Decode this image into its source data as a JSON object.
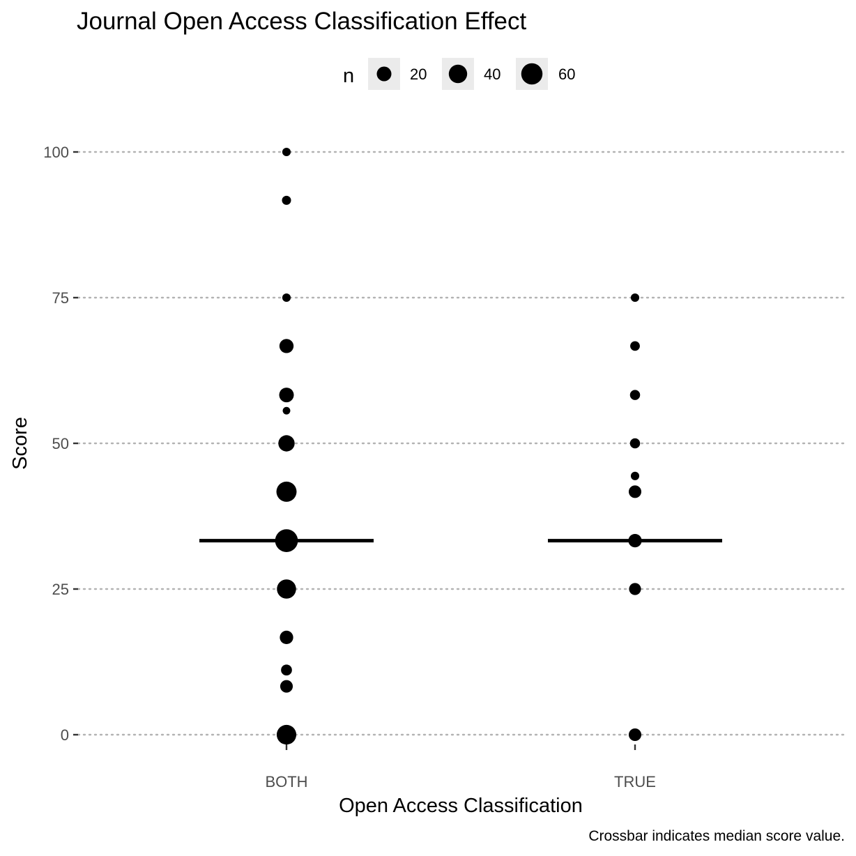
{
  "chart_data": {
    "type": "scatter",
    "title": "Journal Open Access Classification Effect",
    "xlabel": "Open Access Classification",
    "ylabel": "Score",
    "caption": "Crossbar indicates median score value.",
    "categories": [
      "BOTH",
      "TRUE"
    ],
    "ylim": [
      0,
      100
    ],
    "yticks": [
      "0",
      "25",
      "50",
      "75",
      "100"
    ],
    "yticks_values": [
      0,
      25,
      50,
      75,
      100
    ],
    "grid": "horizontal dotted major gridlines",
    "legend": {
      "title": "n",
      "placement": "top",
      "labels": [
        "20",
        "40",
        "60"
      ],
      "values": [
        20,
        40,
        60
      ]
    },
    "medians": [
      {
        "category": "BOTH",
        "y": 33.3
      },
      {
        "category": "TRUE",
        "y": 33.3
      }
    ],
    "points": [
      {
        "category": "BOTH",
        "y": 100,
        "n": 2
      },
      {
        "category": "BOTH",
        "y": 91.7,
        "n": 3
      },
      {
        "category": "BOTH",
        "y": 75,
        "n": 2
      },
      {
        "category": "BOTH",
        "y": 66.7,
        "n": 18
      },
      {
        "category": "BOTH",
        "y": 58.3,
        "n": 20
      },
      {
        "category": "BOTH",
        "y": 55.6,
        "n": 1
      },
      {
        "category": "BOTH",
        "y": 50,
        "n": 28
      },
      {
        "category": "BOTH",
        "y": 41.7,
        "n": 52
      },
      {
        "category": "BOTH",
        "y": 33.3,
        "n": 72
      },
      {
        "category": "BOTH",
        "y": 25,
        "n": 45
      },
      {
        "category": "BOTH",
        "y": 16.7,
        "n": 15
      },
      {
        "category": "BOTH",
        "y": 11.1,
        "n": 7
      },
      {
        "category": "BOTH",
        "y": 8.3,
        "n": 12
      },
      {
        "category": "BOTH",
        "y": 0,
        "n": 48
      },
      {
        "category": "TRUE",
        "y": 75,
        "n": 2
      },
      {
        "category": "TRUE",
        "y": 66.7,
        "n": 4
      },
      {
        "category": "TRUE",
        "y": 58.3,
        "n": 5
      },
      {
        "category": "TRUE",
        "y": 50,
        "n": 5
      },
      {
        "category": "TRUE",
        "y": 44.4,
        "n": 2
      },
      {
        "category": "TRUE",
        "y": 41.7,
        "n": 12
      },
      {
        "category": "TRUE",
        "y": 33.3,
        "n": 15
      },
      {
        "category": "TRUE",
        "y": 25,
        "n": 10
      },
      {
        "category": "TRUE",
        "y": 0,
        "n": 12
      }
    ]
  }
}
